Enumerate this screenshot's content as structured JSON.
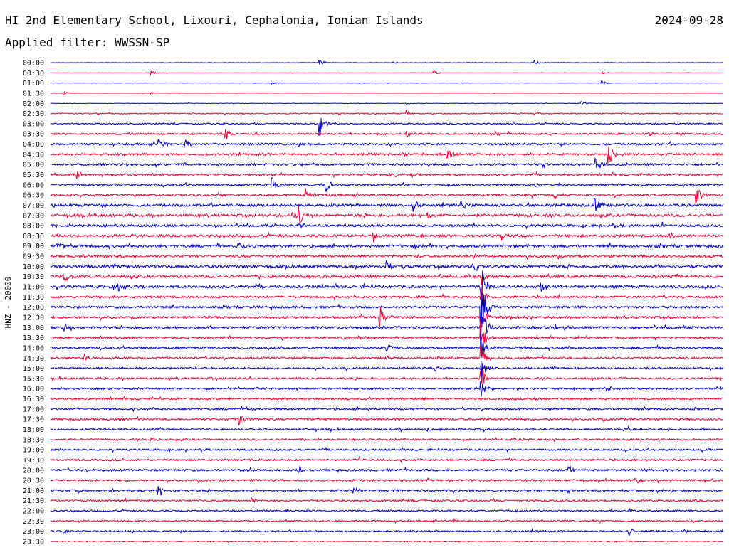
{
  "header": {
    "station_title": "HI 2nd Elementary School, Lixouri, Cephalonia, Ionian Islands",
    "date": "2024-09-28",
    "filter_label": "Applied filter: WWSSN-SP"
  },
  "chart_data": {
    "type": "helicorder",
    "channel_label": "HNZ - 20000",
    "line_minutes": 30,
    "line_colors": [
      "#0000cc",
      "#ee0033"
    ],
    "rows": [
      {
        "time": "00:00",
        "noise": 0.25,
        "events": [
          {
            "x": 0.4,
            "a": 4
          },
          {
            "x": 0.72,
            "a": 3
          },
          {
            "x": 0.51,
            "a": 2
          }
        ]
      },
      {
        "time": "00:30",
        "noise": 0.25,
        "events": [
          {
            "x": 0.15,
            "a": 3
          },
          {
            "x": 0.57,
            "a": 3
          },
          {
            "x": 0.82,
            "a": 3
          }
        ]
      },
      {
        "time": "01:00",
        "noise": 0.25,
        "events": [
          {
            "x": 0.33,
            "a": 2
          },
          {
            "x": 0.82,
            "a": 3
          }
        ]
      },
      {
        "time": "01:30",
        "noise": 0.2,
        "events": [
          {
            "x": 0.02,
            "a": 3
          },
          {
            "x": 0.15,
            "a": 2
          }
        ]
      },
      {
        "time": "02:00",
        "noise": 0.3,
        "events": [
          {
            "x": 0.53,
            "a": 2
          },
          {
            "x": 0.79,
            "a": 3
          }
        ]
      },
      {
        "time": "02:30",
        "noise": 0.8,
        "events": [
          {
            "x": 0.53,
            "a": 4
          },
          {
            "x": 0.72,
            "a": 3
          }
        ]
      },
      {
        "time": "03:00",
        "noise": 0.9,
        "events": [
          {
            "x": 0.4,
            "a": 20
          }
        ]
      },
      {
        "time": "03:30",
        "noise": 1.2,
        "events": [
          {
            "x": 0.26,
            "a": 10
          },
          {
            "x": 0.53,
            "a": 5
          },
          {
            "x": 0.66,
            "a": 4
          },
          {
            "x": 0.89,
            "a": 4
          }
        ]
      },
      {
        "time": "04:00",
        "noise": 1.4,
        "events": [
          {
            "x": 0.16,
            "a": 10
          },
          {
            "x": 0.2,
            "a": 9
          },
          {
            "x": 0.37,
            "a": 4
          }
        ]
      },
      {
        "time": "04:30",
        "noise": 1.4,
        "events": [
          {
            "x": 0.59,
            "a": 9
          },
          {
            "x": 0.83,
            "a": 14
          }
        ]
      },
      {
        "time": "05:00",
        "noise": 1.5,
        "events": [
          {
            "x": 0.81,
            "a": 12
          },
          {
            "x": 0.2,
            "a": 4
          }
        ]
      },
      {
        "time": "05:30",
        "noise": 1.3,
        "events": [
          {
            "x": 0.04,
            "a": 6
          },
          {
            "x": 0.51,
            "a": 4
          }
        ]
      },
      {
        "time": "06:00",
        "noise": 1.4,
        "events": [
          {
            "x": 0.33,
            "a": 12
          },
          {
            "x": 0.41,
            "a": 10
          },
          {
            "x": 0.72,
            "a": 5
          }
        ]
      },
      {
        "time": "06:30",
        "noise": 1.6,
        "events": [
          {
            "x": 0.38,
            "a": 12
          },
          {
            "x": 0.75,
            "a": 5
          },
          {
            "x": 0.96,
            "a": 14
          }
        ]
      },
      {
        "time": "07:00",
        "noise": 1.8,
        "events": [
          {
            "x": 0.54,
            "a": 10
          },
          {
            "x": 0.61,
            "a": 9
          },
          {
            "x": 0.81,
            "a": 12
          }
        ]
      },
      {
        "time": "07:30",
        "noise": 1.8,
        "events": [
          {
            "x": 0.36,
            "a": 7
          },
          {
            "x": 0.37,
            "a": 14
          },
          {
            "x": 0.56,
            "a": 6
          }
        ]
      },
      {
        "time": "08:00",
        "noise": 1.6,
        "events": [
          {
            "x": 0.91,
            "a": 6
          },
          {
            "x": 0.37,
            "a": 5
          }
        ]
      },
      {
        "time": "08:30",
        "noise": 1.7,
        "events": [
          {
            "x": 0.48,
            "a": 7
          },
          {
            "x": 0.67,
            "a": 6
          },
          {
            "x": 0.92,
            "a": 5
          }
        ]
      },
      {
        "time": "09:00",
        "noise": 1.8,
        "events": [
          {
            "x": 0.01,
            "a": 9
          },
          {
            "x": 0.28,
            "a": 7
          },
          {
            "x": 0.54,
            "a": 4
          }
        ]
      },
      {
        "time": "09:30",
        "noise": 1.6,
        "events": [
          {
            "x": 0.63,
            "a": 4
          },
          {
            "x": 0.05,
            "a": 4
          }
        ]
      },
      {
        "time": "10:00",
        "noise": 1.8,
        "events": [
          {
            "x": 0.5,
            "a": 9
          },
          {
            "x": 0.63,
            "a": 10
          }
        ]
      },
      {
        "time": "10:30",
        "noise": 1.8,
        "events": [
          {
            "x": 0.02,
            "a": 10
          },
          {
            "x": 0.64,
            "a": 16
          }
        ]
      },
      {
        "time": "11:00",
        "noise": 1.8,
        "events": [
          {
            "x": 0.1,
            "a": 10
          },
          {
            "x": 0.64,
            "a": 35
          },
          {
            "x": 0.73,
            "a": 8
          }
        ]
      },
      {
        "time": "11:30",
        "noise": 1.5,
        "events": [
          {
            "x": 0.64,
            "a": 22
          }
        ]
      },
      {
        "time": "12:00",
        "noise": 1.5,
        "events": [
          {
            "x": 0.64,
            "a": 55
          }
        ]
      },
      {
        "time": "12:30",
        "noise": 1.5,
        "events": [
          {
            "x": 0.49,
            "a": 16
          },
          {
            "x": 0.64,
            "a": 20
          },
          {
            "x": 0.71,
            "a": 4
          }
        ]
      },
      {
        "time": "13:00",
        "noise": 1.6,
        "events": [
          {
            "x": 0.64,
            "a": 40
          },
          {
            "x": 0.75,
            "a": 8
          },
          {
            "x": 0.02,
            "a": 5
          }
        ]
      },
      {
        "time": "13:30",
        "noise": 1.3,
        "events": [
          {
            "x": 0.64,
            "a": 25
          },
          {
            "x": 0.43,
            "a": 4
          }
        ]
      },
      {
        "time": "14:00",
        "noise": 1.4,
        "events": [
          {
            "x": 0.64,
            "a": 20
          },
          {
            "x": 0.5,
            "a": 6
          }
        ]
      },
      {
        "time": "14:30",
        "noise": 1.3,
        "events": [
          {
            "x": 0.64,
            "a": 18
          },
          {
            "x": 0.05,
            "a": 6
          }
        ]
      },
      {
        "time": "15:00",
        "noise": 1.3,
        "events": [
          {
            "x": 0.64,
            "a": 20
          },
          {
            "x": 0.57,
            "a": 6
          }
        ]
      },
      {
        "time": "15:30",
        "noise": 1.3,
        "events": [
          {
            "x": 0.64,
            "a": 20
          }
        ]
      },
      {
        "time": "16:00",
        "noise": 1.2,
        "events": [
          {
            "x": 0.64,
            "a": 14
          },
          {
            "x": 0.83,
            "a": 4
          }
        ]
      },
      {
        "time": "16:30",
        "noise": 1.2,
        "events": [
          {
            "x": 0.72,
            "a": 3
          }
        ]
      },
      {
        "time": "17:00",
        "noise": 1.3,
        "events": [
          {
            "x": 0.29,
            "a": 4
          }
        ]
      },
      {
        "time": "17:30",
        "noise": 1.3,
        "events": [
          {
            "x": 0.28,
            "a": 10
          }
        ]
      },
      {
        "time": "18:00",
        "noise": 1.2,
        "events": [
          {
            "x": 0.86,
            "a": 6
          },
          {
            "x": 0.56,
            "a": 4
          }
        ]
      },
      {
        "time": "18:30",
        "noise": 1.2,
        "events": [
          {
            "x": 0.15,
            "a": 4
          }
        ]
      },
      {
        "time": "19:00",
        "noise": 1.2,
        "events": [
          {
            "x": 0.97,
            "a": 4
          }
        ]
      },
      {
        "time": "19:30",
        "noise": 1.3,
        "events": [
          {
            "x": 0.46,
            "a": 4
          }
        ]
      },
      {
        "time": "20:00",
        "noise": 1.4,
        "events": [
          {
            "x": 0.77,
            "a": 8
          },
          {
            "x": 0.37,
            "a": 5
          }
        ]
      },
      {
        "time": "20:30",
        "noise": 1.3,
        "events": [
          {
            "x": 0.87,
            "a": 5
          }
        ]
      },
      {
        "time": "21:00",
        "noise": 1.4,
        "events": [
          {
            "x": 0.16,
            "a": 8
          },
          {
            "x": 0.45,
            "a": 4
          }
        ]
      },
      {
        "time": "21:30",
        "noise": 1.2,
        "events": [
          {
            "x": 0.3,
            "a": 4
          }
        ]
      },
      {
        "time": "22:00",
        "noise": 1.1,
        "events": [
          {
            "x": 0.86,
            "a": 4
          }
        ]
      },
      {
        "time": "22:30",
        "noise": 1.1,
        "events": [
          {
            "x": 0.6,
            "a": 3
          }
        ]
      },
      {
        "time": "23:00",
        "noise": 1.1,
        "events": [
          {
            "x": 0.86,
            "a": 6
          },
          {
            "x": 0.02,
            "a": 4
          }
        ]
      },
      {
        "time": "23:30",
        "noise": 0.6,
        "events": []
      }
    ]
  }
}
